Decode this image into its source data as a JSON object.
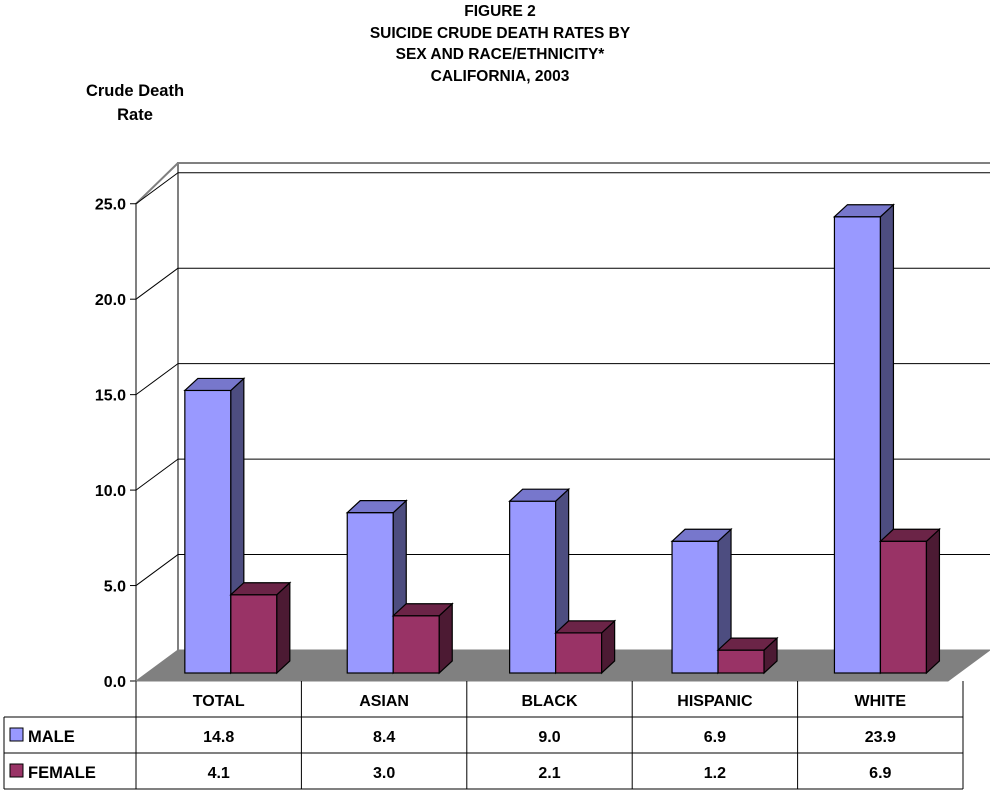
{
  "chart_data": {
    "type": "bar",
    "title": [
      "FIGURE 2",
      "SUICIDE CRUDE DEATH RATES BY",
      "SEX AND RACE/ETHNICITY*",
      "CALIFORNIA, 2003"
    ],
    "ylabel": [
      "Crude Death",
      "Rate"
    ],
    "xlabel": "",
    "categories": [
      "TOTAL",
      "ASIAN",
      "BLACK",
      "HISPANIC",
      "WHITE"
    ],
    "series": [
      {
        "name": "MALE",
        "values": [
          14.8,
          8.4,
          9.0,
          6.9,
          23.9
        ],
        "color": "#9999FF",
        "side_color": "#4D4D80",
        "top_color": "#7777CC"
      },
      {
        "name": "FEMALE",
        "values": [
          4.1,
          3.0,
          2.1,
          1.2,
          6.9
        ],
        "color": "#993366",
        "side_color": "#4C1A33",
        "top_color": "#6B2447"
      }
    ],
    "yticks": [
      "0.0",
      "5.0",
      "10.0",
      "15.0",
      "20.0",
      "25.0"
    ],
    "ylim": [
      0,
      25
    ],
    "grid": true,
    "legend": "data-table",
    "floor_color": "#808080"
  }
}
